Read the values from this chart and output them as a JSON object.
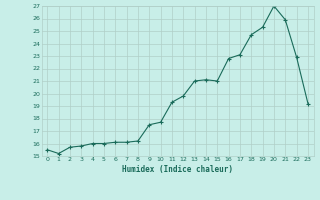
{
  "xlabel": "Humidex (Indice chaleur)",
  "x": [
    0,
    1,
    2,
    3,
    4,
    5,
    6,
    7,
    8,
    9,
    10,
    11,
    12,
    13,
    14,
    15,
    16,
    17,
    18,
    19,
    20,
    21,
    22,
    23
  ],
  "y": [
    15.5,
    15.2,
    15.7,
    15.8,
    16.0,
    16.0,
    16.1,
    16.1,
    16.2,
    17.5,
    17.7,
    19.3,
    19.8,
    21.0,
    21.1,
    21.0,
    22.8,
    23.1,
    24.7,
    25.3,
    27.0,
    25.9,
    22.9,
    19.2
  ],
  "line_color": "#1a6b5a",
  "bg_color": "#c8eee8",
  "grid_color": "#b0cfc8",
  "tick_label_color": "#1a6b5a",
  "xlabel_color": "#1a6b5a",
  "ylim": [
    15,
    27
  ],
  "xlim": [
    -0.5,
    23.5
  ],
  "yticks": [
    15,
    16,
    17,
    18,
    19,
    20,
    21,
    22,
    23,
    24,
    25,
    26,
    27
  ],
  "xticks": [
    0,
    1,
    2,
    3,
    4,
    5,
    6,
    7,
    8,
    9,
    10,
    11,
    12,
    13,
    14,
    15,
    16,
    17,
    18,
    19,
    20,
    21,
    22,
    23
  ],
  "marker": "+"
}
